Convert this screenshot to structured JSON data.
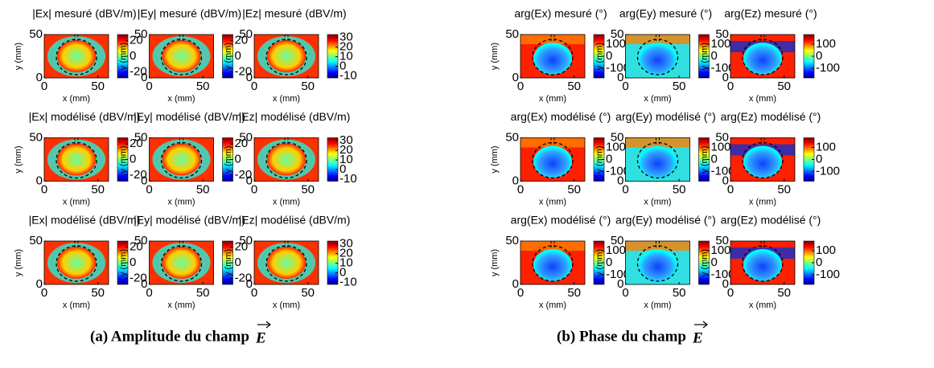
{
  "figures": [
    {
      "caption": "(a) Amplitude du champ",
      "symbol": "E",
      "kind": "amplitude",
      "panels": [
        {
          "title": "|Ex| mesuré (dBV/m)",
          "xlabel": "x (mm)",
          "ylabel": "y (mm)",
          "xlim": [
            0,
            60
          ],
          "ylim": [
            0,
            50
          ],
          "xticks": [
            0,
            50
          ],
          "yticks": [
            0,
            50
          ],
          "clim": [
            -28,
            28
          ],
          "cticks": [
            20,
            0,
            -20
          ]
        },
        {
          "title": "|Ey| mesuré (dBV/m)",
          "xlabel": "x (mm)",
          "ylabel": "y (mm)",
          "xlim": [
            0,
            60
          ],
          "ylim": [
            0,
            50
          ],
          "xticks": [
            0,
            50
          ],
          "yticks": [
            0,
            50
          ],
          "clim": [
            -28,
            28
          ],
          "cticks": [
            20,
            0,
            -20
          ]
        },
        {
          "title": "|Ez| mesuré (dBV/m)",
          "xlabel": "x (mm)",
          "ylabel": "y (mm)",
          "xlim": [
            0,
            60
          ],
          "ylim": [
            0,
            50
          ],
          "xticks": [
            0,
            50
          ],
          "yticks": [
            0,
            50
          ],
          "clim": [
            -12,
            33
          ],
          "cticks": [
            30,
            20,
            10,
            0,
            -10
          ]
        },
        {
          "title": "|Ex| modélisé (dBV/m)",
          "xlabel": "x (mm)",
          "ylabel": "y (mm)",
          "xlim": [
            0,
            60
          ],
          "ylim": [
            0,
            50
          ],
          "xticks": [
            0,
            50
          ],
          "yticks": [
            0,
            50
          ],
          "clim": [
            -28,
            28
          ],
          "cticks": [
            20,
            0,
            -20
          ]
        },
        {
          "title": "|Ey| modélisé (dBV/m)",
          "xlabel": "x (mm)",
          "ylabel": "y (mm)",
          "xlim": [
            0,
            60
          ],
          "ylim": [
            0,
            50
          ],
          "xticks": [
            0,
            50
          ],
          "yticks": [
            0,
            50
          ],
          "clim": [
            -28,
            28
          ],
          "cticks": [
            20,
            0,
            -20
          ]
        },
        {
          "title": "|Ez| modélisé (dBV/m)",
          "xlabel": "x (mm)",
          "ylabel": "y (mm)",
          "xlim": [
            0,
            60
          ],
          "ylim": [
            0,
            50
          ],
          "xticks": [
            0,
            50
          ],
          "yticks": [
            0,
            50
          ],
          "clim": [
            -12,
            33
          ],
          "cticks": [
            30,
            20,
            10,
            0,
            -10
          ]
        },
        {
          "title": "|Ex| modélisé (dBV/m)",
          "xlabel": "x (mm)",
          "ylabel": "y (mm)",
          "xlim": [
            0,
            60
          ],
          "ylim": [
            0,
            50
          ],
          "xticks": [
            0,
            50
          ],
          "yticks": [
            0,
            50
          ],
          "clim": [
            -28,
            28
          ],
          "cticks": [
            20,
            0,
            -20
          ]
        },
        {
          "title": "|Ey| modélisé (dBV/m)",
          "xlabel": "x (mm)",
          "ylabel": "y (mm)",
          "xlim": [
            0,
            60
          ],
          "ylim": [
            0,
            50
          ],
          "xticks": [
            0,
            50
          ],
          "yticks": [
            0,
            50
          ],
          "clim": [
            -28,
            28
          ],
          "cticks": [
            20,
            0,
            -20
          ]
        },
        {
          "title": "|Ez| modélisé (dBV/m)",
          "xlabel": "x (mm)",
          "ylabel": "y (mm)",
          "xlim": [
            0,
            60
          ],
          "ylim": [
            0,
            50
          ],
          "xticks": [
            0,
            50
          ],
          "yticks": [
            0,
            50
          ],
          "clim": [
            -12,
            33
          ],
          "cticks": [
            30,
            20,
            10,
            0,
            -10
          ]
        }
      ]
    },
    {
      "caption": "(b) Phase du champ",
      "symbol": "E",
      "kind": "phase",
      "panels": [
        {
          "title": "arg(Ex) mesuré (°)",
          "xlabel": "x (mm)",
          "ylabel": "y (mm)",
          "xlim": [
            0,
            60
          ],
          "ylim": [
            0,
            50
          ],
          "xticks": [
            0,
            50
          ],
          "yticks": [
            0,
            50
          ],
          "clim": [
            -180,
            180
          ],
          "cticks": [
            100,
            0,
            -100
          ]
        },
        {
          "title": "arg(Ey) mesuré (°)",
          "xlabel": "x (mm)",
          "ylabel": "y (mm)",
          "xlim": [
            0,
            60
          ],
          "ylim": [
            0,
            50
          ],
          "xticks": [
            0,
            50
          ],
          "yticks": [
            0,
            50
          ],
          "clim": [
            -180,
            180
          ],
          "cticks": [
            100,
            0,
            -100
          ]
        },
        {
          "title": "arg(Ez) mesuré (°)",
          "xlabel": "x (mm)",
          "ylabel": "y (mm)",
          "xlim": [
            0,
            60
          ],
          "ylim": [
            0,
            50
          ],
          "xticks": [
            0,
            50
          ],
          "yticks": [
            0,
            50
          ],
          "clim": [
            -180,
            180
          ],
          "cticks": [
            100,
            0,
            -100
          ]
        },
        {
          "title": "arg(Ex) modélisé (°)",
          "xlabel": "x (mm)",
          "ylabel": "y (mm)",
          "xlim": [
            0,
            60
          ],
          "ylim": [
            0,
            50
          ],
          "xticks": [
            0,
            50
          ],
          "yticks": [
            0,
            50
          ],
          "clim": [
            -180,
            180
          ],
          "cticks": [
            100,
            0,
            -100
          ]
        },
        {
          "title": "arg(Ey) modélisé (°)",
          "xlabel": "x (mm)",
          "ylabel": "y (mm)",
          "xlim": [
            0,
            60
          ],
          "ylim": [
            0,
            50
          ],
          "xticks": [
            0,
            50
          ],
          "yticks": [
            0,
            50
          ],
          "clim": [
            -180,
            180
          ],
          "cticks": [
            100,
            0,
            -100
          ]
        },
        {
          "title": "arg(Ez) modélisé (°)",
          "xlabel": "x (mm)",
          "ylabel": "y (mm)",
          "xlim": [
            0,
            60
          ],
          "ylim": [
            0,
            50
          ],
          "xticks": [
            0,
            50
          ],
          "yticks": [
            0,
            50
          ],
          "clim": [
            -180,
            180
          ],
          "cticks": [
            100,
            0,
            -100
          ]
        },
        {
          "title": "arg(Ex) modélisé (°)",
          "xlabel": "x (mm)",
          "ylabel": "y (mm)",
          "xlim": [
            0,
            60
          ],
          "ylim": [
            0,
            50
          ],
          "xticks": [
            0,
            50
          ],
          "yticks": [
            0,
            50
          ],
          "clim": [
            -180,
            180
          ],
          "cticks": [
            100,
            0,
            -100
          ]
        },
        {
          "title": "arg(Ey) modélisé (°)",
          "xlabel": "x (mm)",
          "ylabel": "y (mm)",
          "xlim": [
            0,
            60
          ],
          "ylim": [
            0,
            50
          ],
          "xticks": [
            0,
            50
          ],
          "yticks": [
            0,
            50
          ],
          "clim": [
            -180,
            180
          ],
          "cticks": [
            100,
            0,
            -100
          ]
        },
        {
          "title": "arg(Ez) modélisé (°)",
          "xlabel": "x (mm)",
          "ylabel": "y (mm)",
          "xlim": [
            0,
            60
          ],
          "ylim": [
            0,
            50
          ],
          "xticks": [
            0,
            50
          ],
          "yticks": [
            0,
            50
          ],
          "clim": [
            -180,
            180
          ],
          "cticks": [
            100,
            0,
            -100
          ]
        }
      ]
    }
  ]
}
